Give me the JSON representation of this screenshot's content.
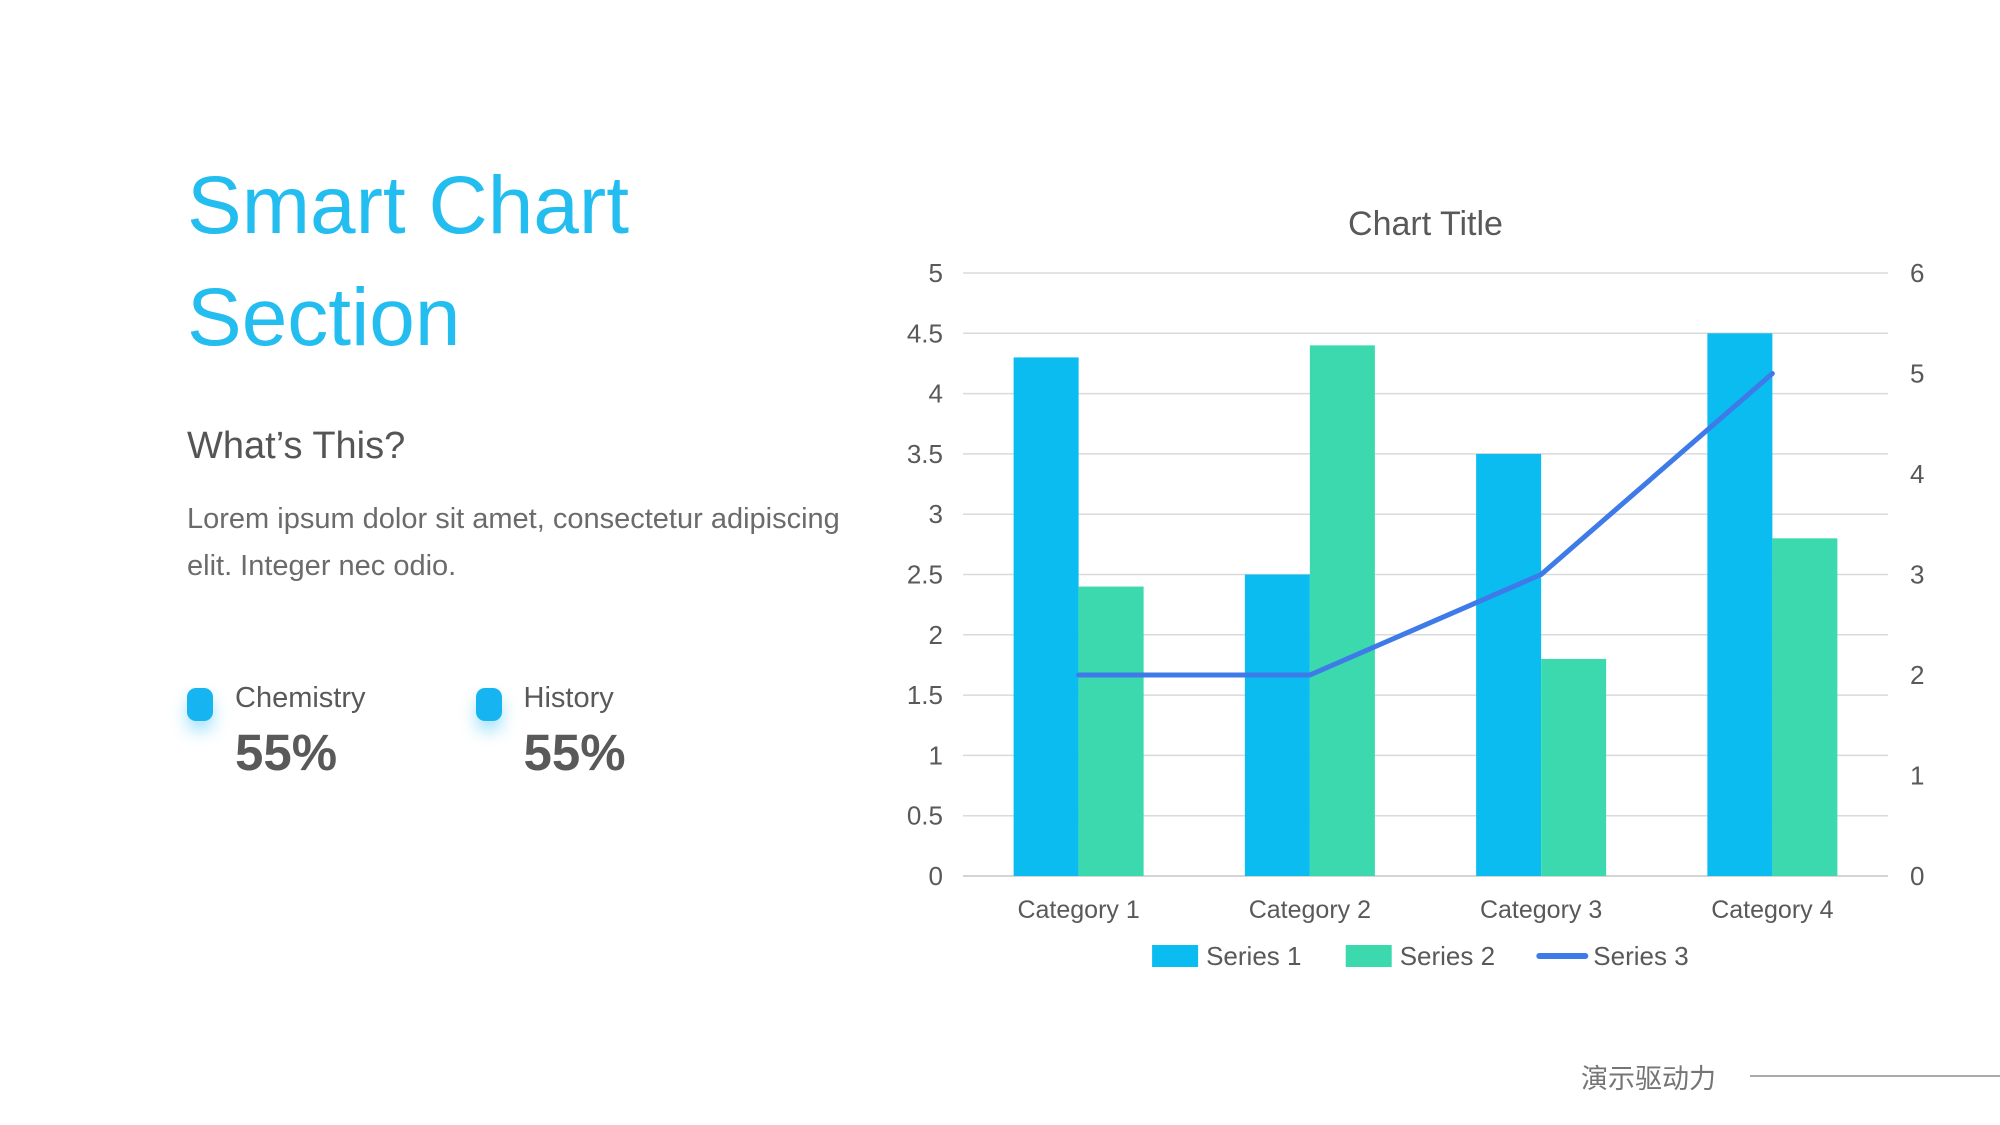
{
  "slide": {
    "title": "Smart Chart Section",
    "subtitle": "What’s This?",
    "body": "Lorem ipsum dolor sit amet, consectetur adipiscing elit. Integer nec odio.",
    "stats": [
      {
        "label": "Chemistry",
        "value": "55%"
      },
      {
        "label": "History",
        "value": "55%"
      }
    ],
    "footer": {
      "brand": "演示驱动力"
    }
  },
  "colors": {
    "accent_cyan": "#23BDEF",
    "bullet_cyan": "#16B5F2",
    "bar_series1": "#0ABCF0",
    "bar_series2": "#3BD9AD",
    "line_series3": "#3E7BE8",
    "grid": "#DADADA",
    "baseline": "#C6C6C6",
    "chart_text": "#595959"
  },
  "chart_data": {
    "type": "bar",
    "subtype": "combo-bar-line-dual-axis",
    "title": "Chart Title",
    "categories": [
      "Category 1",
      "Category 2",
      "Category 3",
      "Category 4"
    ],
    "series": [
      {
        "name": "Series 1",
        "kind": "bar",
        "axis": "left",
        "color": "#0ABCF0",
        "values": [
          4.3,
          2.5,
          3.5,
          4.5
        ]
      },
      {
        "name": "Series 2",
        "kind": "bar",
        "axis": "left",
        "color": "#3BD9AD",
        "values": [
          2.4,
          4.4,
          1.8,
          2.8
        ]
      },
      {
        "name": "Series 3",
        "kind": "line",
        "axis": "right",
        "color": "#3E7BE8",
        "values": [
          2,
          2,
          3,
          5
        ]
      }
    ],
    "left_axis": {
      "min": 0,
      "max": 5,
      "step": 0.5,
      "tick_labels": [
        "0",
        "0.5",
        "1",
        "1.5",
        "2",
        "2.5",
        "3",
        "3.5",
        "4",
        "4.5",
        "5"
      ]
    },
    "right_axis": {
      "min": 0,
      "max": 6,
      "step": 1,
      "tick_labels": [
        "0",
        "1",
        "2",
        "3",
        "4",
        "5",
        "6"
      ]
    },
    "grid": true,
    "legend_position": "bottom"
  }
}
